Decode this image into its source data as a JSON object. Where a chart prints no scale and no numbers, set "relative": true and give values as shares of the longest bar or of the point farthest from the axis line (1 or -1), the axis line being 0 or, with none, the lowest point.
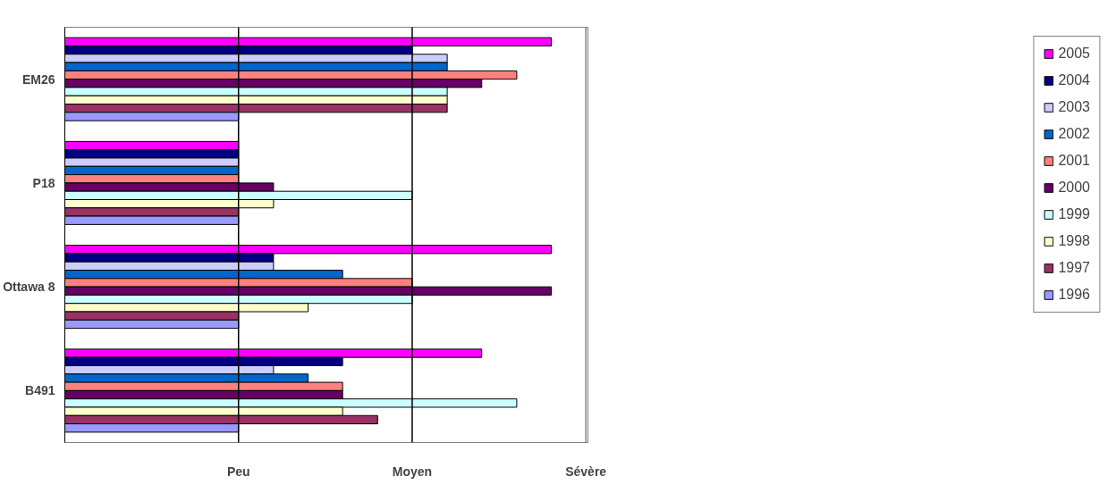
{
  "chart_data": {
    "type": "bar",
    "orientation": "horizontal",
    "relative": true,
    "categories": [
      "EM26",
      "P18",
      "Ottawa 8",
      "B491"
    ],
    "series": [
      {
        "name": "2005",
        "color": "#ff00ff",
        "values": [
          1.0,
          0.357,
          1.0,
          0.857
        ]
      },
      {
        "name": "2004",
        "color": "#000080",
        "values": [
          0.714,
          0.357,
          0.429,
          0.571
        ]
      },
      {
        "name": "2003",
        "color": "#ccccff",
        "values": [
          0.786,
          0.357,
          0.429,
          0.429
        ]
      },
      {
        "name": "2002",
        "color": "#0066cc",
        "values": [
          0.786,
          0.357,
          0.571,
          0.5
        ]
      },
      {
        "name": "2001",
        "color": "#ff8080",
        "values": [
          0.929,
          0.357,
          0.714,
          0.571
        ]
      },
      {
        "name": "2000",
        "color": "#660066",
        "values": [
          0.857,
          0.429,
          1.0,
          0.571
        ]
      },
      {
        "name": "1999",
        "color": "#ccffff",
        "values": [
          0.786,
          0.714,
          0.714,
          0.929
        ]
      },
      {
        "name": "1998",
        "color": "#ffffcc",
        "values": [
          0.786,
          0.429,
          0.5,
          0.571
        ]
      },
      {
        "name": "1997",
        "color": "#993366",
        "values": [
          0.786,
          0.357,
          0.357,
          0.643
        ]
      },
      {
        "name": "1996",
        "color": "#9999ff",
        "values": [
          0.357,
          0.357,
          0.357,
          0.357
        ]
      }
    ],
    "ref_lines": [
      {
        "axis": "x",
        "value": 0.357,
        "label": "Peu",
        "color": "#000000"
      },
      {
        "axis": "x",
        "value": 0.714,
        "label": "Moyen",
        "color": "#000000"
      },
      {
        "axis": "x",
        "value": 1.071,
        "label": "Sévère",
        "color": "#808080"
      }
    ],
    "legend": "right"
  }
}
